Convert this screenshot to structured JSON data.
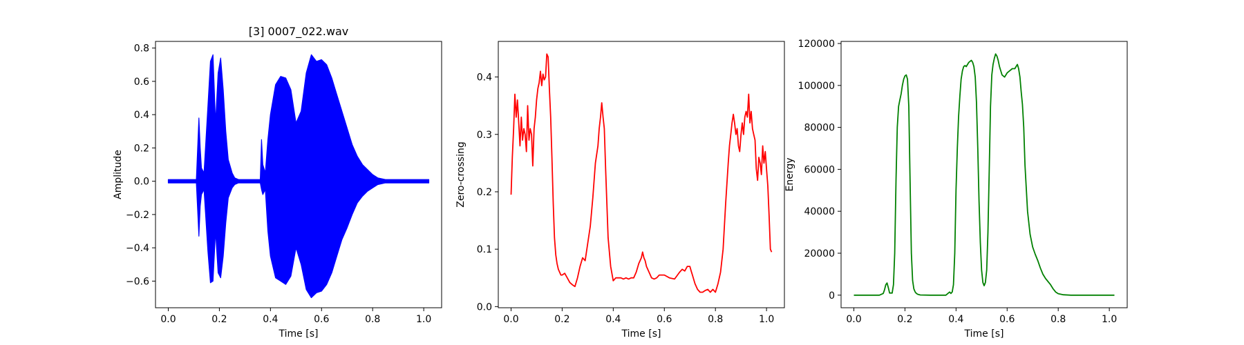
{
  "chart_data": [
    {
      "type": "line",
      "title": "[3] 0007_022.wav",
      "xlabel": "Time [s]",
      "ylabel": "Amplitude",
      "xlim": [
        -0.05,
        1.07
      ],
      "ylim": [
        -0.76,
        0.84
      ],
      "xticks": [
        0.0,
        0.2,
        0.4,
        0.6,
        0.8,
        1.0
      ],
      "xtick_labels": [
        "0.0",
        "0.2",
        "0.4",
        "0.6",
        "0.8",
        "1.0"
      ],
      "yticks": [
        -0.6,
        -0.4,
        -0.2,
        0.0,
        0.2,
        0.4,
        0.6,
        0.8
      ],
      "ytick_labels": [
        "−0.6",
        "−0.4",
        "−0.2",
        "0.0",
        "0.2",
        "0.4",
        "0.6",
        "0.8"
      ],
      "grid": false,
      "color": "#0000ff",
      "series": [
        {
          "kind": "envelope",
          "x": [
            0.0,
            0.11,
            0.12,
            0.125,
            0.13,
            0.14,
            0.155,
            0.165,
            0.175,
            0.185,
            0.195,
            0.205,
            0.215,
            0.225,
            0.235,
            0.25,
            0.26,
            0.275,
            0.3,
            0.34,
            0.36,
            0.365,
            0.37,
            0.38,
            0.39,
            0.4,
            0.42,
            0.44,
            0.46,
            0.48,
            0.5,
            0.52,
            0.54,
            0.56,
            0.58,
            0.6,
            0.62,
            0.64,
            0.66,
            0.68,
            0.7,
            0.72,
            0.74,
            0.76,
            0.78,
            0.8,
            0.82,
            0.85,
            0.9,
            1.0,
            1.02
          ],
          "upper": [
            0.01,
            0.01,
            0.38,
            0.2,
            0.08,
            0.05,
            0.45,
            0.72,
            0.76,
            0.35,
            0.65,
            0.74,
            0.55,
            0.3,
            0.13,
            0.05,
            0.02,
            0.01,
            0.01,
            0.01,
            0.01,
            0.25,
            0.1,
            0.05,
            0.25,
            0.4,
            0.58,
            0.63,
            0.62,
            0.55,
            0.35,
            0.42,
            0.65,
            0.76,
            0.72,
            0.73,
            0.7,
            0.62,
            0.52,
            0.42,
            0.32,
            0.22,
            0.15,
            0.1,
            0.07,
            0.04,
            0.02,
            0.01,
            0.01,
            0.01,
            0.01
          ],
          "lower": [
            -0.01,
            -0.01,
            -0.33,
            -0.15,
            -0.08,
            -0.05,
            -0.42,
            -0.61,
            -0.6,
            -0.3,
            -0.55,
            -0.58,
            -0.45,
            -0.25,
            -0.1,
            -0.04,
            -0.02,
            -0.01,
            -0.01,
            -0.01,
            -0.01,
            -0.05,
            -0.08,
            -0.05,
            -0.3,
            -0.45,
            -0.58,
            -0.6,
            -0.62,
            -0.57,
            -0.4,
            -0.5,
            -0.65,
            -0.7,
            -0.67,
            -0.66,
            -0.62,
            -0.55,
            -0.45,
            -0.35,
            -0.28,
            -0.2,
            -0.13,
            -0.09,
            -0.06,
            -0.04,
            -0.02,
            -0.01,
            -0.01,
            -0.01,
            -0.01
          ]
        }
      ]
    },
    {
      "type": "line",
      "title": "",
      "xlabel": "Time [s]",
      "ylabel": "Zero-crossing",
      "xlim": [
        -0.05,
        1.07
      ],
      "ylim": [
        -0.002,
        0.462
      ],
      "xticks": [
        0.0,
        0.2,
        0.4,
        0.6,
        0.8,
        1.0
      ],
      "xtick_labels": [
        "0.0",
        "0.2",
        "0.4",
        "0.6",
        "0.8",
        "1.0"
      ],
      "yticks": [
        0.0,
        0.1,
        0.2,
        0.3,
        0.4
      ],
      "ytick_labels": [
        "0.0",
        "0.1",
        "0.2",
        "0.3",
        "0.4"
      ],
      "grid": false,
      "color": "#ff0000",
      "series": [
        {
          "x": [
            0.0,
            0.005,
            0.01,
            0.015,
            0.02,
            0.025,
            0.03,
            0.035,
            0.04,
            0.045,
            0.05,
            0.055,
            0.06,
            0.065,
            0.07,
            0.075,
            0.08,
            0.085,
            0.09,
            0.095,
            0.1,
            0.105,
            0.11,
            0.115,
            0.12,
            0.125,
            0.13,
            0.135,
            0.14,
            0.145,
            0.15,
            0.155,
            0.16,
            0.165,
            0.17,
            0.175,
            0.18,
            0.185,
            0.19,
            0.195,
            0.2,
            0.21,
            0.22,
            0.23,
            0.24,
            0.25,
            0.26,
            0.27,
            0.28,
            0.29,
            0.3,
            0.31,
            0.32,
            0.33,
            0.34,
            0.345,
            0.35,
            0.355,
            0.36,
            0.365,
            0.37,
            0.375,
            0.38,
            0.39,
            0.4,
            0.41,
            0.42,
            0.43,
            0.44,
            0.45,
            0.46,
            0.47,
            0.48,
            0.49,
            0.5,
            0.51,
            0.515,
            0.52,
            0.525,
            0.53,
            0.54,
            0.55,
            0.56,
            0.57,
            0.58,
            0.59,
            0.6,
            0.62,
            0.64,
            0.66,
            0.67,
            0.68,
            0.69,
            0.7,
            0.705,
            0.71,
            0.72,
            0.73,
            0.74,
            0.75,
            0.76,
            0.77,
            0.78,
            0.79,
            0.8,
            0.81,
            0.82,
            0.83,
            0.84,
            0.85,
            0.855,
            0.86,
            0.865,
            0.87,
            0.875,
            0.88,
            0.885,
            0.89,
            0.895,
            0.9,
            0.905,
            0.91,
            0.915,
            0.92,
            0.925,
            0.93,
            0.935,
            0.94,
            0.945,
            0.95,
            0.955,
            0.96,
            0.965,
            0.97,
            0.975,
            0.98,
            0.985,
            0.99,
            0.995,
            1.0,
            1.005,
            1.01,
            1.015,
            1.02
          ],
          "y": [
            0.195,
            0.26,
            0.31,
            0.37,
            0.33,
            0.36,
            0.32,
            0.28,
            0.33,
            0.29,
            0.31,
            0.3,
            0.27,
            0.35,
            0.29,
            0.31,
            0.3,
            0.245,
            0.31,
            0.33,
            0.36,
            0.38,
            0.39,
            0.41,
            0.385,
            0.405,
            0.395,
            0.4,
            0.44,
            0.435,
            0.38,
            0.33,
            0.26,
            0.18,
            0.12,
            0.09,
            0.075,
            0.065,
            0.06,
            0.055,
            0.055,
            0.058,
            0.05,
            0.042,
            0.038,
            0.035,
            0.05,
            0.07,
            0.085,
            0.08,
            0.11,
            0.14,
            0.19,
            0.25,
            0.28,
            0.31,
            0.33,
            0.355,
            0.33,
            0.31,
            0.24,
            0.18,
            0.12,
            0.07,
            0.045,
            0.05,
            0.05,
            0.05,
            0.048,
            0.05,
            0.048,
            0.05,
            0.05,
            0.06,
            0.075,
            0.085,
            0.095,
            0.085,
            0.08,
            0.07,
            0.06,
            0.05,
            0.048,
            0.05,
            0.055,
            0.055,
            0.055,
            0.05,
            0.048,
            0.06,
            0.065,
            0.062,
            0.07,
            0.07,
            0.062,
            0.055,
            0.04,
            0.03,
            0.025,
            0.025,
            0.028,
            0.03,
            0.025,
            0.03,
            0.025,
            0.04,
            0.06,
            0.1,
            0.18,
            0.25,
            0.28,
            0.3,
            0.32,
            0.335,
            0.32,
            0.3,
            0.31,
            0.28,
            0.27,
            0.3,
            0.32,
            0.3,
            0.33,
            0.34,
            0.33,
            0.37,
            0.32,
            0.34,
            0.31,
            0.3,
            0.29,
            0.24,
            0.22,
            0.26,
            0.25,
            0.23,
            0.28,
            0.25,
            0.27,
            0.24,
            0.21,
            0.16,
            0.1,
            0.095
          ]
        }
      ]
    },
    {
      "type": "line",
      "title": "",
      "xlabel": "Time [s]",
      "ylabel": "Energy",
      "xlim": [
        -0.05,
        1.07
      ],
      "ylim": [
        -6000,
        121000
      ],
      "xticks": [
        0.0,
        0.2,
        0.4,
        0.6,
        0.8,
        1.0
      ],
      "xtick_labels": [
        "0.0",
        "0.2",
        "0.4",
        "0.6",
        "0.8",
        "1.0"
      ],
      "yticks": [
        0,
        20000,
        40000,
        60000,
        80000,
        100000,
        120000
      ],
      "ytick_labels": [
        "0",
        "20000",
        "40000",
        "60000",
        "80000",
        "100000",
        "120000"
      ],
      "grid": false,
      "color": "#008000",
      "series": [
        {
          "x": [
            0.0,
            0.1,
            0.115,
            0.12,
            0.125,
            0.13,
            0.135,
            0.14,
            0.15,
            0.155,
            0.16,
            0.165,
            0.17,
            0.175,
            0.18,
            0.185,
            0.19,
            0.195,
            0.2,
            0.205,
            0.21,
            0.215,
            0.22,
            0.225,
            0.23,
            0.235,
            0.24,
            0.245,
            0.25,
            0.26,
            0.3,
            0.36,
            0.37,
            0.375,
            0.38,
            0.385,
            0.39,
            0.395,
            0.4,
            0.405,
            0.41,
            0.415,
            0.42,
            0.425,
            0.43,
            0.435,
            0.44,
            0.45,
            0.46,
            0.465,
            0.47,
            0.475,
            0.48,
            0.485,
            0.49,
            0.495,
            0.5,
            0.505,
            0.51,
            0.515,
            0.52,
            0.525,
            0.53,
            0.535,
            0.54,
            0.545,
            0.55,
            0.555,
            0.56,
            0.565,
            0.57,
            0.58,
            0.59,
            0.6,
            0.61,
            0.62,
            0.63,
            0.635,
            0.64,
            0.645,
            0.65,
            0.655,
            0.66,
            0.665,
            0.67,
            0.68,
            0.69,
            0.7,
            0.71,
            0.72,
            0.73,
            0.74,
            0.75,
            0.76,
            0.77,
            0.78,
            0.79,
            0.8,
            0.82,
            0.85,
            0.9,
            1.0,
            1.02
          ],
          "y": [
            0,
            0,
            800,
            2500,
            5000,
            5800,
            3500,
            1000,
            1000,
            5000,
            20000,
            55000,
            80000,
            90000,
            93000,
            96000,
            100000,
            103000,
            104500,
            105000,
            103000,
            90000,
            55000,
            20000,
            7000,
            3000,
            1500,
            800,
            400,
            100,
            0,
            0,
            1000,
            1500,
            800,
            1500,
            5000,
            20000,
            50000,
            70000,
            85000,
            95000,
            103000,
            107000,
            109000,
            109500,
            109000,
            111000,
            112000,
            111000,
            109000,
            104000,
            92000,
            70000,
            45000,
            25000,
            12000,
            6000,
            4500,
            6000,
            12000,
            30000,
            60000,
            90000,
            105000,
            110000,
            113000,
            115000,
            114000,
            112000,
            109000,
            105000,
            104000,
            106000,
            107000,
            108000,
            108000,
            109000,
            110000,
            108000,
            104000,
            97000,
            91000,
            80000,
            62000,
            40000,
            29000,
            23000,
            19500,
            16500,
            13000,
            10000,
            8000,
            6500,
            5000,
            3000,
            1500,
            700,
            200,
            0,
            0,
            0,
            0
          ]
        }
      ]
    }
  ]
}
